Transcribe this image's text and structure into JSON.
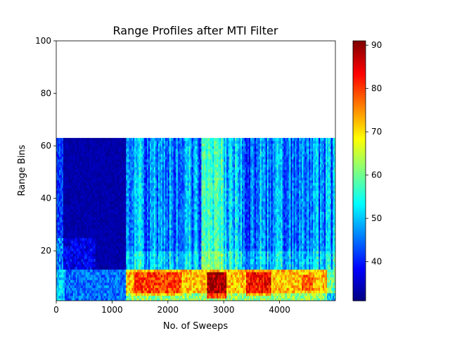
{
  "chart_data": {
    "type": "heatmap",
    "title": "Range Profiles after MTI Filter",
    "xlabel": "No. of Sweeps",
    "ylabel": "Range Bins",
    "xlim": [
      0,
      5000
    ],
    "ylim": [
      1,
      100
    ],
    "x_ticks": [
      0,
      1000,
      2000,
      3000,
      4000
    ],
    "y_ticks": [
      20,
      40,
      60,
      80,
      100
    ],
    "data_extent": {
      "x": [
        0,
        5000
      ],
      "y": [
        1,
        63
      ]
    },
    "colormap": "jet",
    "colorbar": {
      "range": [
        31,
        91
      ],
      "ticks": [
        40,
        50,
        60,
        70,
        80,
        90
      ]
    },
    "grid": false,
    "regions": [
      {
        "sweeps": [
          0,
          1250
        ],
        "range_bins": [
          13,
          63
        ],
        "level": "low (~31-35)"
      },
      {
        "sweeps": [
          1250,
          5000
        ],
        "range_bins": [
          13,
          63
        ],
        "level": "moderate streaks (~40-60)"
      },
      {
        "sweeps": [
          2650,
          2950
        ],
        "range_bins": [
          13,
          63
        ],
        "level": "elevated (~55-60)"
      },
      {
        "sweeps": [
          1300,
          4850
        ],
        "range_bins": [
          3,
          13
        ],
        "level": "high (~70-90)"
      },
      {
        "sweeps": [
          2700,
          3000
        ],
        "range_bins": [
          2,
          12
        ],
        "level": "peak (~88-91)"
      },
      {
        "sweeps": [
          3400,
          3800
        ],
        "range_bins": [
          3,
          12
        ],
        "level": "high (~80-87)"
      }
    ]
  }
}
